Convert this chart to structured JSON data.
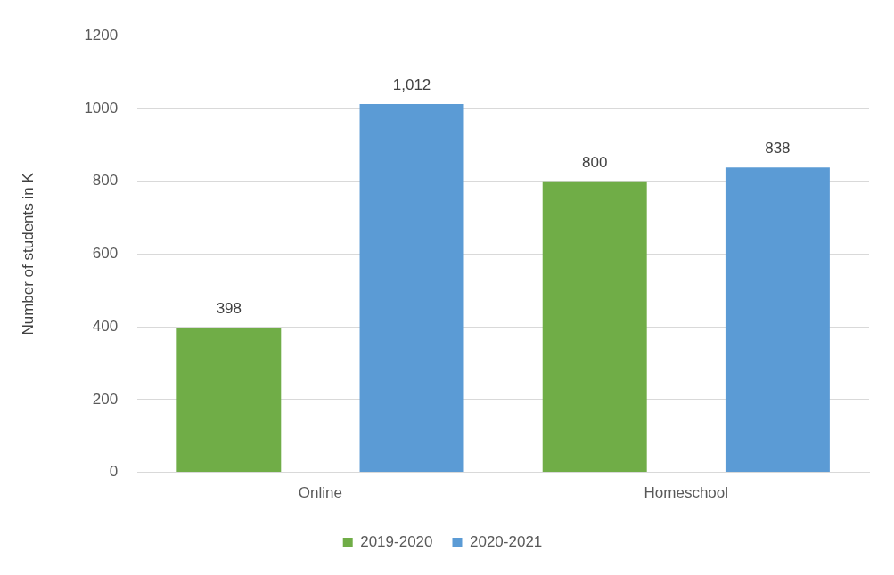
{
  "chart_data": {
    "type": "bar",
    "ylabel": "Number of students in K",
    "categories": [
      "Online",
      "Homeschool"
    ],
    "series": [
      {
        "name": "2019-2020",
        "color": "#70ad47",
        "values": [
          398,
          800
        ],
        "value_labels": [
          "398",
          "800"
        ]
      },
      {
        "name": "2020-2021",
        "color": "#5b9bd5",
        "values": [
          1012,
          838
        ],
        "value_labels": [
          "1,012",
          "838"
        ]
      }
    ],
    "ylim": [
      0,
      1200
    ],
    "yticks": [
      0,
      200,
      400,
      600,
      800,
      1000,
      1200
    ],
    "grid": "y",
    "legend": "bottom"
  }
}
